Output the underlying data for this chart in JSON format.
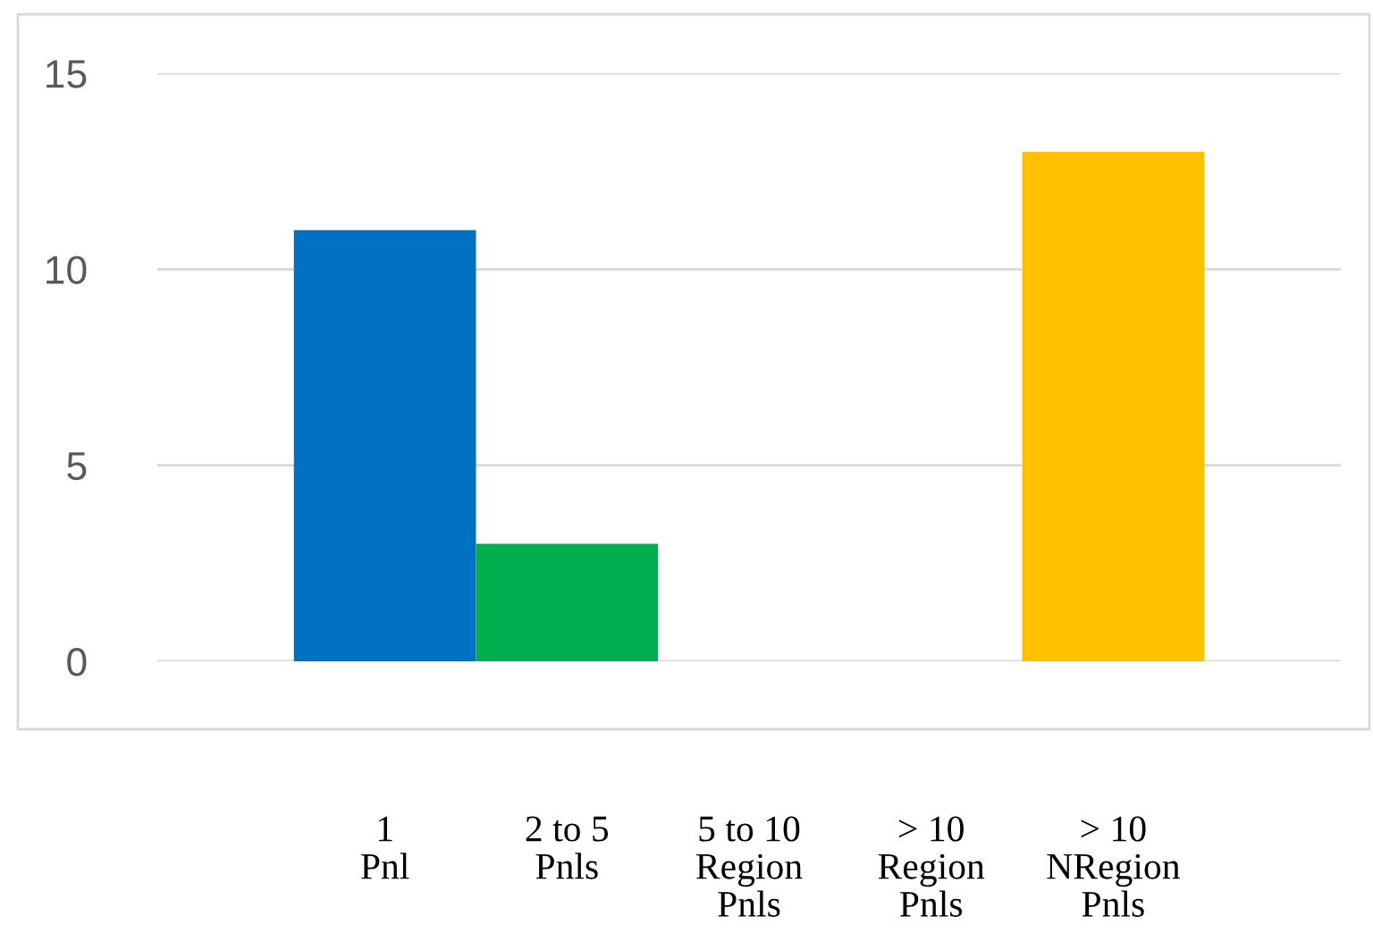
{
  "chart_data": {
    "type": "bar",
    "categories": [
      "1\nPnl",
      "2 to 5\nPnls",
      "5 to 10\nRegion\nPnls",
      "> 10\nRegion\nPnls",
      "> 10\nNRegion\nPnls"
    ],
    "values": [
      11,
      3,
      0,
      0,
      13
    ],
    "colors": [
      "#0070c0",
      "#00b050",
      "#00b050",
      "#00b050",
      "#ffc000"
    ],
    "ylim": [
      0,
      15
    ],
    "yticks": [
      0,
      5,
      10,
      15
    ],
    "grid": "y",
    "legend": false
  }
}
